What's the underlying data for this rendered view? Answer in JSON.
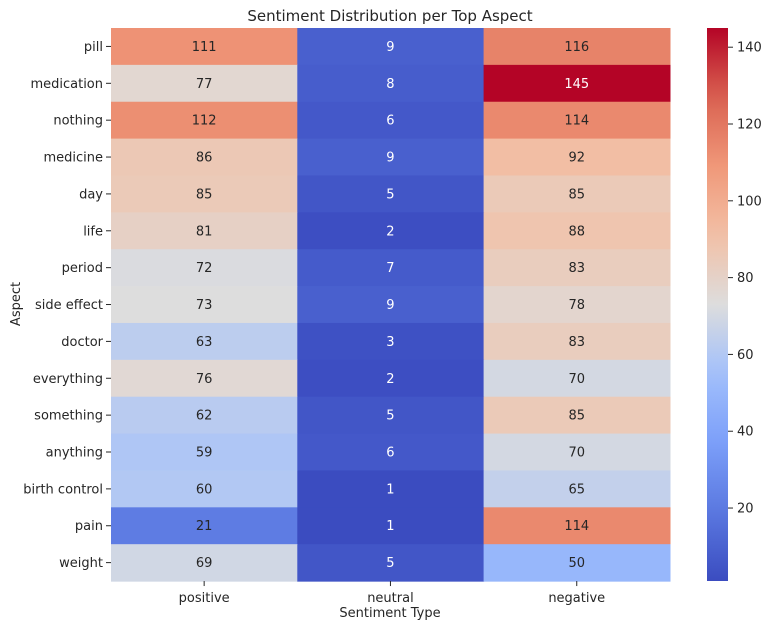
{
  "chart_data": {
    "type": "heatmap",
    "title": "Sentiment Distribution per Top Aspect",
    "xlabel": "Sentiment Type",
    "ylabel": "Aspect",
    "x_categories": [
      "positive",
      "neutral",
      "negative"
    ],
    "y_categories": [
      "pill",
      "medication",
      "nothing",
      "medicine",
      "day",
      "life",
      "period",
      "side effect",
      "doctor",
      "everything",
      "something",
      "anything",
      "birth control",
      "pain",
      "weight"
    ],
    "values": [
      [
        111,
        9,
        116
      ],
      [
        77,
        8,
        145
      ],
      [
        112,
        6,
        114
      ],
      [
        86,
        9,
        92
      ],
      [
        85,
        5,
        85
      ],
      [
        81,
        2,
        88
      ],
      [
        72,
        7,
        83
      ],
      [
        73,
        9,
        78
      ],
      [
        63,
        3,
        83
      ],
      [
        76,
        2,
        70
      ],
      [
        62,
        5,
        85
      ],
      [
        59,
        6,
        70
      ],
      [
        60,
        1,
        65
      ],
      [
        21,
        1,
        114
      ],
      [
        69,
        5,
        50
      ]
    ],
    "colormap": "coolwarm",
    "color_range": [
      1,
      145
    ],
    "colorbar_ticks": [
      20,
      40,
      60,
      80,
      100,
      120,
      140
    ],
    "annotated": true
  }
}
